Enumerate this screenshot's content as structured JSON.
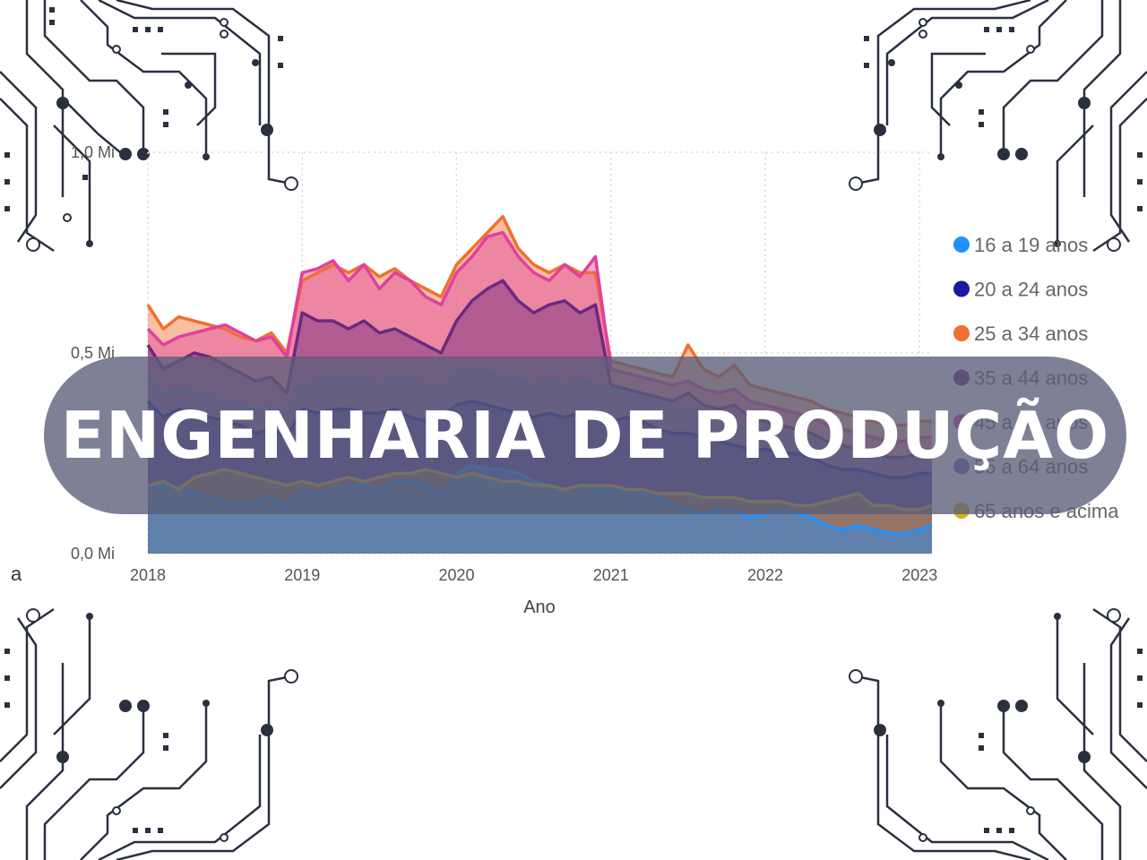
{
  "banner": {
    "title": "ENGENHARIA DE PRODUÇÃO"
  },
  "fragment_left": "a",
  "chart_data": {
    "type": "area",
    "xlabel": "Ano",
    "ylabel": "",
    "x_ticks": [
      "2018",
      "2019",
      "2020",
      "2021",
      "2022",
      "2023"
    ],
    "y_ticks": [
      "0,0 Mi",
      "0,5 Mi",
      "1,0 Mi"
    ],
    "ylim": [
      0,
      1.0
    ],
    "xlim": [
      2018,
      2023.08
    ],
    "grid": true,
    "legend_position": "right",
    "x": [
      2018.0,
      2018.1,
      2018.2,
      2018.3,
      2018.4,
      2018.5,
      2018.6,
      2018.7,
      2018.8,
      2018.9,
      2019.0,
      2019.1,
      2019.2,
      2019.3,
      2019.4,
      2019.5,
      2019.6,
      2019.7,
      2019.8,
      2019.9,
      2020.0,
      2020.1,
      2020.2,
      2020.3,
      2020.4,
      2020.5,
      2020.6,
      2020.7,
      2020.8,
      2020.9,
      2021.0,
      2021.1,
      2021.2,
      2021.3,
      2021.4,
      2021.5,
      2021.6,
      2021.7,
      2021.8,
      2021.9,
      2022.0,
      2022.1,
      2022.2,
      2022.3,
      2022.4,
      2022.5,
      2022.6,
      2022.7,
      2022.8,
      2022.9,
      2023.0,
      2023.08
    ],
    "series": [
      {
        "name": "16 a 19 anos",
        "color": "#1E90FF",
        "values": [
          0.16,
          0.17,
          0.16,
          0.15,
          0.14,
          0.13,
          0.12,
          0.13,
          0.14,
          0.12,
          0.16,
          0.15,
          0.16,
          0.17,
          0.17,
          0.16,
          0.18,
          0.18,
          0.17,
          0.15,
          0.2,
          0.22,
          0.21,
          0.21,
          0.2,
          0.18,
          0.17,
          0.16,
          0.17,
          0.16,
          0.16,
          0.16,
          0.15,
          0.14,
          0.12,
          0.11,
          0.1,
          0.11,
          0.11,
          0.09,
          0.1,
          0.11,
          0.1,
          0.09,
          0.07,
          0.06,
          0.07,
          0.06,
          0.05,
          0.05,
          0.06,
          0.07
        ]
      },
      {
        "name": "20 a 24 anos",
        "color": "#1A1AA0",
        "values": [
          0.38,
          0.34,
          0.36,
          0.35,
          0.34,
          0.33,
          0.32,
          0.3,
          0.31,
          0.29,
          0.36,
          0.35,
          0.36,
          0.36,
          0.35,
          0.35,
          0.36,
          0.34,
          0.33,
          0.34,
          0.37,
          0.38,
          0.37,
          0.36,
          0.35,
          0.34,
          0.35,
          0.34,
          0.35,
          0.34,
          0.33,
          0.34,
          0.33,
          0.31,
          0.3,
          0.3,
          0.29,
          0.28,
          0.27,
          0.26,
          0.26,
          0.25,
          0.25,
          0.24,
          0.22,
          0.21,
          0.21,
          0.2,
          0.19,
          0.19,
          0.2,
          0.2
        ]
      },
      {
        "name": "25 a 34 anos",
        "color": "#F07030",
        "values": [
          0.62,
          0.56,
          0.59,
          0.58,
          0.57,
          0.56,
          0.54,
          0.53,
          0.55,
          0.5,
          0.68,
          0.7,
          0.72,
          0.7,
          0.72,
          0.69,
          0.71,
          0.68,
          0.66,
          0.64,
          0.72,
          0.76,
          0.8,
          0.84,
          0.76,
          0.72,
          0.7,
          0.72,
          0.7,
          0.7,
          0.48,
          0.47,
          0.46,
          0.45,
          0.44,
          0.52,
          0.46,
          0.44,
          0.47,
          0.42,
          0.41,
          0.4,
          0.39,
          0.38,
          0.36,
          0.35,
          0.34,
          0.33,
          0.32,
          0.32,
          0.33,
          0.33
        ]
      },
      {
        "name": "35 a 44 anos",
        "color": "#6A2A80",
        "values": [
          0.52,
          0.46,
          0.48,
          0.5,
          0.49,
          0.47,
          0.45,
          0.43,
          0.44,
          0.4,
          0.6,
          0.58,
          0.58,
          0.56,
          0.58,
          0.55,
          0.56,
          0.54,
          0.52,
          0.5,
          0.58,
          0.63,
          0.66,
          0.68,
          0.63,
          0.6,
          0.62,
          0.63,
          0.6,
          0.62,
          0.42,
          0.41,
          0.4,
          0.39,
          0.38,
          0.4,
          0.37,
          0.36,
          0.37,
          0.34,
          0.33,
          0.32,
          0.31,
          0.3,
          0.28,
          0.27,
          0.26,
          0.25,
          0.24,
          0.24,
          0.25,
          0.25
        ]
      },
      {
        "name": "45 a 54 anos",
        "color": "#E040A0",
        "values": [
          0.56,
          0.52,
          0.54,
          0.55,
          0.56,
          0.57,
          0.55,
          0.53,
          0.54,
          0.49,
          0.7,
          0.71,
          0.73,
          0.68,
          0.72,
          0.66,
          0.7,
          0.68,
          0.64,
          0.62,
          0.7,
          0.74,
          0.79,
          0.8,
          0.74,
          0.7,
          0.68,
          0.72,
          0.69,
          0.74,
          0.46,
          0.45,
          0.44,
          0.43,
          0.42,
          0.43,
          0.41,
          0.4,
          0.41,
          0.38,
          0.37,
          0.36,
          0.35,
          0.34,
          0.32,
          0.31,
          0.3,
          0.29,
          0.28,
          0.28,
          0.29,
          0.29
        ]
      },
      {
        "name": "55 a 64 anos",
        "color": "#7070B0",
        "values": [
          0.44,
          0.4,
          0.41,
          0.4,
          0.39,
          0.38,
          0.37,
          0.36,
          0.37,
          0.34,
          0.42,
          0.43,
          0.44,
          0.43,
          0.44,
          0.42,
          0.44,
          0.43,
          0.42,
          0.41,
          0.45,
          0.46,
          0.45,
          0.44,
          0.43,
          0.42,
          0.43,
          0.42,
          0.43,
          0.42,
          0.41,
          0.4,
          0.39,
          0.38,
          0.36,
          0.35,
          0.34,
          0.33,
          0.32,
          0.31,
          0.31,
          0.3,
          0.29,
          0.28,
          0.26,
          0.25,
          0.24,
          0.24,
          0.23,
          0.23,
          0.24,
          0.24
        ]
      },
      {
        "name": "65 anos e acima",
        "color": "#D4B020",
        "values": [
          0.17,
          0.18,
          0.16,
          0.19,
          0.2,
          0.21,
          0.2,
          0.19,
          0.18,
          0.17,
          0.18,
          0.17,
          0.18,
          0.19,
          0.18,
          0.19,
          0.2,
          0.2,
          0.21,
          0.2,
          0.19,
          0.2,
          0.19,
          0.18,
          0.18,
          0.17,
          0.17,
          0.16,
          0.17,
          0.17,
          0.17,
          0.16,
          0.16,
          0.15,
          0.15,
          0.15,
          0.14,
          0.14,
          0.14,
          0.13,
          0.13,
          0.13,
          0.12,
          0.12,
          0.13,
          0.14,
          0.15,
          0.12,
          0.12,
          0.11,
          0.11,
          0.12
        ]
      }
    ]
  }
}
